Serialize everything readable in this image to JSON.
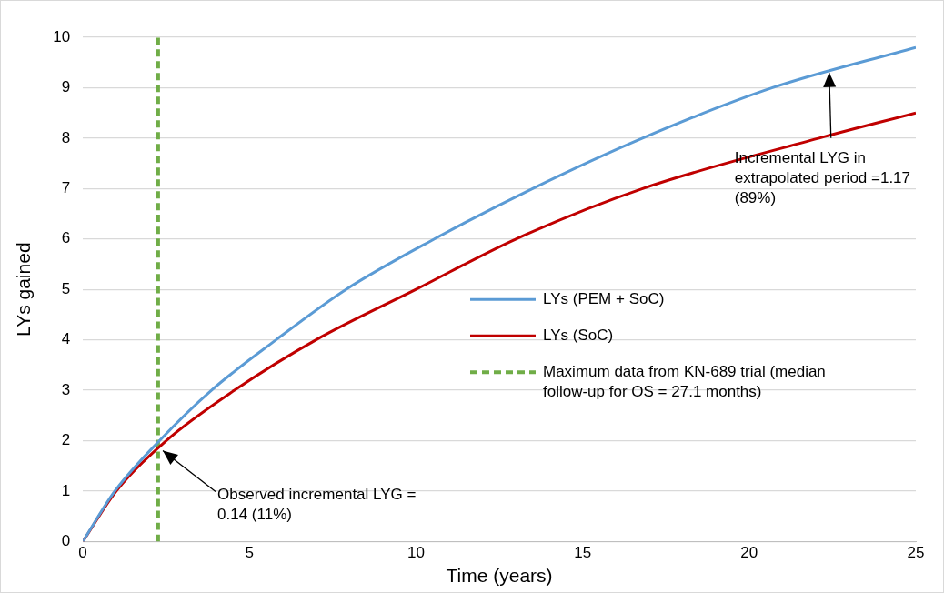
{
  "chart_data": {
    "type": "line",
    "xlabel": "Time (years)",
    "ylabel": "LYs gained",
    "xlim": [
      0,
      25
    ],
    "xticks": [
      0,
      5,
      10,
      15,
      20,
      25
    ],
    "ylim": [
      0,
      10
    ],
    "yticks": [
      0,
      1,
      2,
      3,
      4,
      5,
      6,
      7,
      8,
      9,
      10
    ],
    "grid": "y",
    "legend": "right",
    "marker": "none",
    "line_style": "solid",
    "series": [
      {
        "name": "LYs (PEM + SoC)",
        "color": "#5b9bd5",
        "x": [
          0,
          0.96,
          2.3,
          3.86,
          5.8,
          7.9,
          10.55,
          13.5,
          16.8,
          20.7,
          25
        ],
        "values": [
          0,
          1,
          2,
          3,
          4,
          5,
          6,
          7,
          8,
          9,
          9.8
        ]
      },
      {
        "name": "LYs (SoC)",
        "color": "#c00000",
        "x": [
          0,
          1,
          2.5,
          4.55,
          7,
          10,
          13,
          16.8,
          22.1,
          25
        ],
        "values": [
          0,
          1,
          2,
          3,
          4,
          5,
          6,
          7,
          8,
          8.5
        ]
      },
      {
        "name": "Maximum data from KN-689 trial (median follow-up for OS = 27.1 months)",
        "color": "#70ad47",
        "type": "line",
        "line_style": "dashed",
        "x": [
          2.26,
          2.26
        ],
        "values": [
          0,
          10
        ]
      }
    ],
    "annotations": [
      {
        "text": "Observed incremental LYG = 0.14 (11%)",
        "x": 2.4,
        "y": 1.8
      },
      {
        "text": "Incremental LYG in extrapolated period =1.17 (89%)",
        "x": 22.4,
        "y": 9.3
      }
    ]
  }
}
